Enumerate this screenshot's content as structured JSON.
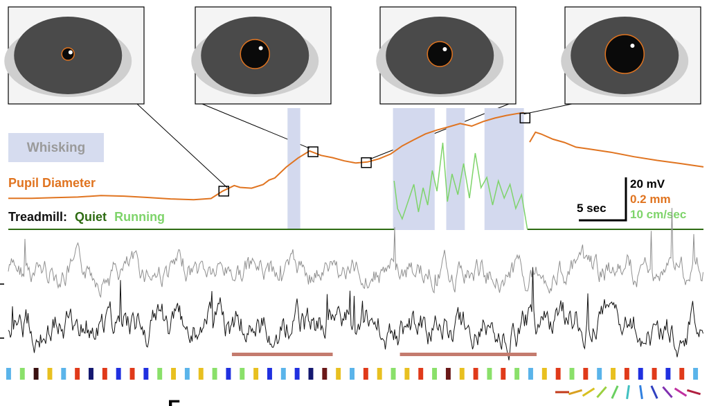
{
  "labels": {
    "whisking": "Whisking",
    "pupil": "Pupil Diameter",
    "treadmill_prefix": "Treadmill:",
    "quiet": "Quiet",
    "running": "Running",
    "scale_time": "5 sec",
    "scale_mv": "20 mV",
    "scale_mm": "0.2 mm",
    "scale_speed": "10 cm/sec",
    "partial_letter": "F"
  },
  "colors": {
    "pupil": "#e07420",
    "whisk_band": "#d3d9ee",
    "whisk_label_bg": "#d6dcef",
    "whisk_label_text": "#9a9a9a",
    "quiet": "#2e6b12",
    "running": "#7ed46a",
    "trace_gray": "#8f8f8f",
    "trace_black": "#111111",
    "epoch_bar": "#c47b6e"
  },
  "chart_data": {
    "type": "line",
    "time_range_sec": [
      0,
      60
    ],
    "title": "",
    "whisking_epochs_sec": [
      [
        24.1,
        25.2
      ],
      [
        33.2,
        36.8
      ],
      [
        37.8,
        39.4
      ],
      [
        41.1,
        44.5
      ]
    ],
    "series": [
      {
        "name": "Pupil Diameter",
        "unit": "mm (scale bar 0.2 mm)",
        "t": [
          0,
          2,
          4,
          6,
          8,
          10,
          12,
          14,
          16,
          17.5,
          18.5,
          19.5,
          20,
          21,
          22,
          22.5,
          23,
          24,
          25,
          26,
          27,
          28,
          29,
          30,
          31,
          32,
          33,
          34,
          35,
          36,
          37,
          38,
          39,
          40,
          41,
          42,
          43,
          44,
          44.5,
          45,
          45.5,
          46,
          47,
          48,
          49,
          50,
          52,
          54,
          56,
          58,
          60
        ],
        "v": [
          0.12,
          0.125,
          0.13,
          0.13,
          0.135,
          0.13,
          0.125,
          0.12,
          0.115,
          0.12,
          0.17,
          0.21,
          0.2,
          0.2,
          0.23,
          0.26,
          0.27,
          0.35,
          0.42,
          0.48,
          0.45,
          0.43,
          0.4,
          0.38,
          0.39,
          0.42,
          0.46,
          0.52,
          0.56,
          0.6,
          0.63,
          0.66,
          0.69,
          0.67,
          0.7,
          0.72,
          0.74,
          0.76,
          0.77,
          0.55,
          0.62,
          0.6,
          0.56,
          0.54,
          0.51,
          0.5,
          0.47,
          0.43,
          0.4,
          0.38,
          0.36
        ]
      },
      {
        "name": "Treadmill",
        "unit": "cm/sec (scale bar 10 cm/sec)",
        "running_epoch_sec": [
          33.3,
          44.8
        ],
        "t": [
          33.3,
          33.6,
          34,
          34.6,
          35,
          35.4,
          35.8,
          36.2,
          36.6,
          37,
          37.5,
          37.9,
          38.3,
          38.8,
          39.3,
          39.8,
          40.3,
          40.8,
          41.3,
          41.8,
          42.3,
          42.8,
          43.3,
          43.8,
          44.3,
          44.8
        ],
        "v": [
          14,
          6,
          3,
          9,
          13,
          5,
          12,
          7,
          17,
          11,
          25,
          8,
          16,
          10,
          19,
          9,
          22,
          12,
          15,
          7,
          14,
          9,
          13,
          6,
          10,
          0
        ]
      },
      {
        "name": "Vm trace 1",
        "unit": "mV (scale bar 20 mV)",
        "baseline": -45
      },
      {
        "name": "Vm trace 2",
        "unit": "mV (scale bar 20 mV)",
        "baseline": -60
      }
    ],
    "epoch_bars_sec": [
      [
        19.3,
        28.0
      ],
      [
        33.8,
        45.6
      ]
    ],
    "stimulus_colors": [
      "#5ab4ea",
      "#8ae06a",
      "#3a1010",
      "#e8c020",
      "#5ab4ea",
      "#e03a1a",
      "#141870",
      "#e03a1a",
      "#2030e0",
      "#e03a1a",
      "#2030e0",
      "#8ae06a",
      "#e8c020",
      "#5ab4ea",
      "#e8c020",
      "#8ae06a",
      "#2030e0",
      "#8ae06a",
      "#e8c020",
      "#2030e0",
      "#5ab4ea",
      "#2030e0",
      "#141870",
      "#6a1818",
      "#e8c020",
      "#5ab4ea",
      "#e03a1a",
      "#e8c020",
      "#8ae06a",
      "#e8c020",
      "#e03a1a",
      "#8ae06a",
      "#6a1818",
      "#e8c020",
      "#e03a1a",
      "#8ae06a",
      "#e03a1a",
      "#8ae06a",
      "#5ab4ea",
      "#e8c020",
      "#e03a1a",
      "#8ae06a",
      "#e03a1a",
      "#5ab4ea",
      "#e8c020",
      "#e03a1a",
      "#2030e0",
      "#e03a1a",
      "#2030e0",
      "#e03a1a",
      "#5ab4ea"
    ],
    "orientation_key_colors": [
      "#c23a1a",
      "#d8a020",
      "#d8c020",
      "#9ad040",
      "#6ad060",
      "#40c0c0",
      "#3080e0",
      "#3040c0",
      "#8030b0",
      "#c030a0",
      "#b02040"
    ]
  }
}
